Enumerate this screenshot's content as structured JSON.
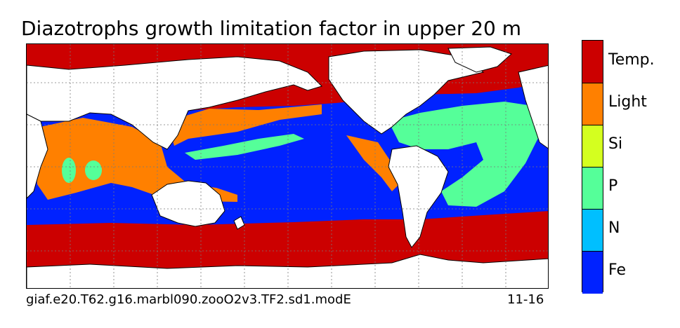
{
  "title": "Diazotrophs growth limitation factor in upper 20 m",
  "caption": {
    "run_name": "giaf.e20.T62.g16.marbl090.zooO2v3.TF2.sd1.modE",
    "date_range": "11-16"
  },
  "colorbar": {
    "categories": [
      {
        "label": "Temp.",
        "color": "#cc0000"
      },
      {
        "label": "Light",
        "color": "#ff8000"
      },
      {
        "label": "Si",
        "color": "#d4ff1f"
      },
      {
        "label": "P",
        "color": "#55ff99"
      },
      {
        "label": "N",
        "color": "#00bfff"
      },
      {
        "label": "Fe",
        "color": "#0022ff"
      }
    ]
  },
  "map_colors": {
    "land": "#ffffff",
    "coast": "#000000",
    "grid": "#7a7a7a"
  }
}
